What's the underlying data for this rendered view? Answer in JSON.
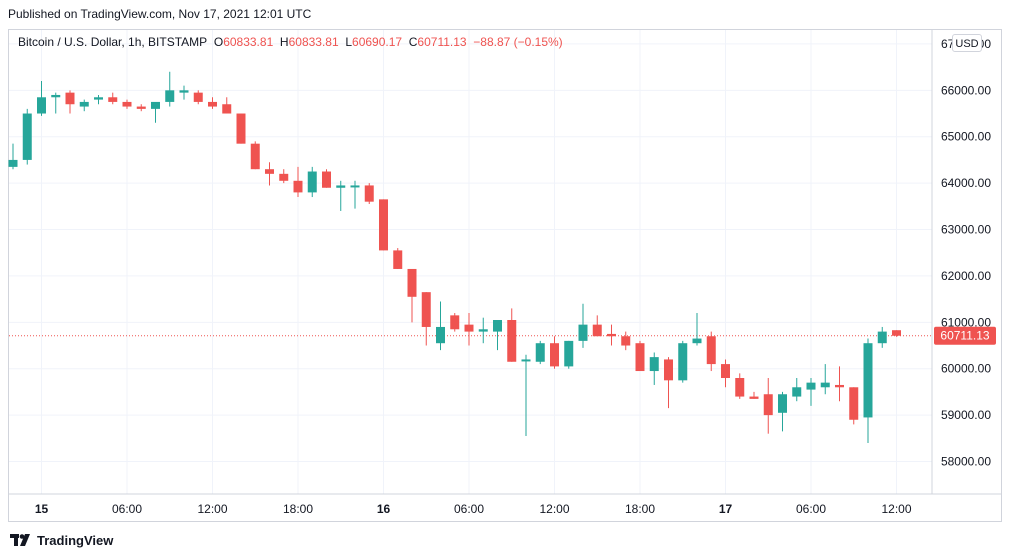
{
  "header": {
    "published": "Published on TradingView.com, Nov 17, 2021 12:01 UTC"
  },
  "legend": {
    "symbol": "Bitcoin / U.S. Dollar, 1h, BITSTAMP",
    "o_label": "O",
    "o_value": "60833.81",
    "h_label": "H",
    "h_value": "60833.81",
    "l_label": "L",
    "l_value": "60690.17",
    "c_label": "C",
    "c_value": "60711.13",
    "change": "−88.87 (−0.15%)"
  },
  "currency_button": "USD",
  "footer": {
    "brand": "TradingView",
    "logo_icon": "tradingview-logo-icon"
  },
  "colors": {
    "up": "#26a69a",
    "down": "#ef5350",
    "grid": "#f0f3fa",
    "axis_text": "#131722"
  },
  "chart_data": {
    "type": "candlestick",
    "ylim": [
      57300,
      67300
    ],
    "y_ticks": [
      58000,
      59000,
      60000,
      61000,
      62000,
      63000,
      64000,
      65000,
      66000,
      67000
    ],
    "y_tick_labels": [
      "58000.00",
      "59000.00",
      "60000.00",
      "61000.00",
      "62000.00",
      "63000.00",
      "64000.00",
      "65000.00",
      "66000.00",
      "67000.00"
    ],
    "x_ticks": [
      {
        "index": 2,
        "label": "15"
      },
      {
        "index": 8,
        "label": "06:00"
      },
      {
        "index": 14,
        "label": "12:00"
      },
      {
        "index": 20,
        "label": "18:00"
      },
      {
        "index": 26,
        "label": "16"
      },
      {
        "index": 32,
        "label": "06:00"
      },
      {
        "index": 38,
        "label": "12:00"
      },
      {
        "index": 44,
        "label": "18:00"
      },
      {
        "index": 50,
        "label": "17"
      },
      {
        "index": 56,
        "label": "06:00"
      },
      {
        "index": 62,
        "label": "12:00"
      }
    ],
    "last_price": 60711.13,
    "last_price_label": "60711.13",
    "candles": [
      {
        "o": 64350,
        "h": 64850,
        "l": 64300,
        "c": 64500
      },
      {
        "o": 64500,
        "h": 65600,
        "l": 64400,
        "c": 65500
      },
      {
        "o": 65500,
        "h": 66200,
        "l": 65450,
        "c": 65850
      },
      {
        "o": 65850,
        "h": 65950,
        "l": 65500,
        "c": 65900
      },
      {
        "o": 65950,
        "h": 66000,
        "l": 65500,
        "c": 65700
      },
      {
        "o": 65650,
        "h": 65800,
        "l": 65550,
        "c": 65750
      },
      {
        "o": 65800,
        "h": 65900,
        "l": 65700,
        "c": 65850
      },
      {
        "o": 65850,
        "h": 65950,
        "l": 65700,
        "c": 65750
      },
      {
        "o": 65750,
        "h": 65800,
        "l": 65600,
        "c": 65650
      },
      {
        "o": 65650,
        "h": 65700,
        "l": 65550,
        "c": 65600
      },
      {
        "o": 65600,
        "h": 65700,
        "l": 65300,
        "c": 65750
      },
      {
        "o": 65750,
        "h": 66400,
        "l": 65650,
        "c": 66000
      },
      {
        "o": 65950,
        "h": 66100,
        "l": 65800,
        "c": 66000
      },
      {
        "o": 65950,
        "h": 66000,
        "l": 65700,
        "c": 65750
      },
      {
        "o": 65750,
        "h": 65850,
        "l": 65600,
        "c": 65650
      },
      {
        "o": 65700,
        "h": 65850,
        "l": 65500,
        "c": 65500
      },
      {
        "o": 65500,
        "h": 65500,
        "l": 64850,
        "c": 64850
      },
      {
        "o": 64850,
        "h": 64900,
        "l": 64300,
        "c": 64300
      },
      {
        "o": 64300,
        "h": 64450,
        "l": 63950,
        "c": 64200
      },
      {
        "o": 64200,
        "h": 64300,
        "l": 64000,
        "c": 64050
      },
      {
        "o": 64050,
        "h": 64350,
        "l": 63700,
        "c": 63800
      },
      {
        "o": 63800,
        "h": 64350,
        "l": 63700,
        "c": 64250
      },
      {
        "o": 64250,
        "h": 64300,
        "l": 63900,
        "c": 63900
      },
      {
        "o": 63900,
        "h": 64050,
        "l": 63400,
        "c": 63950
      },
      {
        "o": 63950,
        "h": 64050,
        "l": 63450,
        "c": 63950
      },
      {
        "o": 63950,
        "h": 64000,
        "l": 63550,
        "c": 63600
      },
      {
        "o": 63650,
        "h": 63650,
        "l": 62550,
        "c": 62550
      },
      {
        "o": 62550,
        "h": 62600,
        "l": 62150,
        "c": 62150
      },
      {
        "o": 62150,
        "h": 62150,
        "l": 61000,
        "c": 61550
      },
      {
        "o": 61650,
        "h": 61650,
        "l": 60500,
        "c": 60900
      },
      {
        "o": 60550,
        "h": 61450,
        "l": 60400,
        "c": 60900
      },
      {
        "o": 61150,
        "h": 61200,
        "l": 60800,
        "c": 60850
      },
      {
        "o": 60950,
        "h": 61200,
        "l": 60500,
        "c": 60800
      },
      {
        "o": 60800,
        "h": 61100,
        "l": 60550,
        "c": 60850
      },
      {
        "o": 60800,
        "h": 61000,
        "l": 60400,
        "c": 61050
      },
      {
        "o": 61050,
        "h": 61300,
        "l": 60150,
        "c": 60150
      },
      {
        "o": 60200,
        "h": 60300,
        "l": 58550,
        "c": 60200
      },
      {
        "o": 60150,
        "h": 60600,
        "l": 60100,
        "c": 60550
      },
      {
        "o": 60550,
        "h": 60700,
        "l": 60000,
        "c": 60050
      },
      {
        "o": 60050,
        "h": 60600,
        "l": 60000,
        "c": 60600
      },
      {
        "o": 60600,
        "h": 61400,
        "l": 60450,
        "c": 60950
      },
      {
        "o": 60950,
        "h": 61150,
        "l": 60700,
        "c": 60700
      },
      {
        "o": 60750,
        "h": 60950,
        "l": 60500,
        "c": 60700
      },
      {
        "o": 60700,
        "h": 60800,
        "l": 60400,
        "c": 60500
      },
      {
        "o": 60550,
        "h": 60600,
        "l": 59950,
        "c": 59950
      },
      {
        "o": 59950,
        "h": 60350,
        "l": 59650,
        "c": 60250
      },
      {
        "o": 60200,
        "h": 60250,
        "l": 59150,
        "c": 59750
      },
      {
        "o": 59750,
        "h": 60600,
        "l": 59700,
        "c": 60550
      },
      {
        "o": 60550,
        "h": 61200,
        "l": 60500,
        "c": 60650
      },
      {
        "o": 60700,
        "h": 60800,
        "l": 59950,
        "c": 60100
      },
      {
        "o": 60100,
        "h": 60200,
        "l": 59600,
        "c": 59800
      },
      {
        "o": 59800,
        "h": 59900,
        "l": 59350,
        "c": 59400
      },
      {
        "o": 59400,
        "h": 59500,
        "l": 59350,
        "c": 59350
      },
      {
        "o": 59450,
        "h": 59800,
        "l": 58600,
        "c": 59000
      },
      {
        "o": 59050,
        "h": 59500,
        "l": 58650,
        "c": 59450
      },
      {
        "o": 59400,
        "h": 59800,
        "l": 59300,
        "c": 59600
      },
      {
        "o": 59550,
        "h": 59800,
        "l": 59200,
        "c": 59700
      },
      {
        "o": 59600,
        "h": 60100,
        "l": 59450,
        "c": 59700
      },
      {
        "o": 59650,
        "h": 60050,
        "l": 59300,
        "c": 59600
      },
      {
        "o": 59600,
        "h": 59600,
        "l": 58800,
        "c": 58900
      },
      {
        "o": 58950,
        "h": 60650,
        "l": 58400,
        "c": 60550
      },
      {
        "o": 60550,
        "h": 60900,
        "l": 60450,
        "c": 60800
      },
      {
        "o": 60830,
        "h": 60830,
        "l": 60690,
        "c": 60711
      }
    ]
  }
}
